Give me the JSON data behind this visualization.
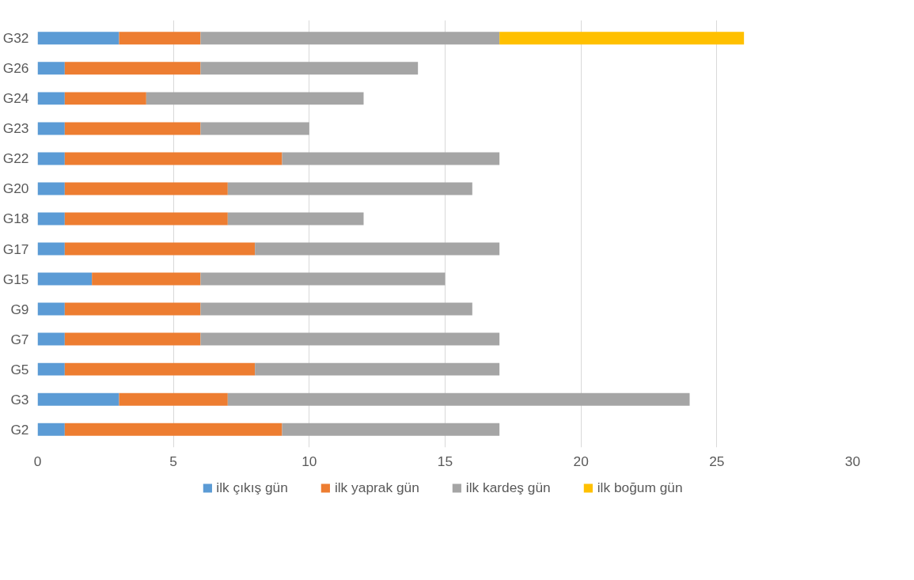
{
  "chart_data": {
    "type": "bar",
    "orientation": "horizontal",
    "stacked": true,
    "categories": [
      "G32",
      "G26",
      "G24",
      "G23",
      "G22",
      "G20",
      "G18",
      "G17",
      "G15",
      "G9",
      "G7",
      "G5",
      "G3",
      "G2"
    ],
    "series": [
      {
        "name": "ilk çıkış gün",
        "color": "#5b9bd5",
        "values": [
          3,
          1,
          1,
          1,
          1,
          1,
          1,
          1,
          2,
          1,
          1,
          1,
          3,
          1
        ]
      },
      {
        "name": "ilk yaprak gün",
        "color": "#ed7d31",
        "values": [
          3,
          5,
          3,
          5,
          8,
          6,
          6,
          7,
          4,
          5,
          5,
          7,
          4,
          8
        ]
      },
      {
        "name": "ilk kardeş gün",
        "color": "#a5a5a5",
        "values": [
          11,
          8,
          8,
          4,
          8,
          9,
          5,
          9,
          9,
          10,
          11,
          9,
          17,
          8
        ]
      },
      {
        "name": "ilk boğum gün",
        "color": "#ffc000",
        "values": [
          9,
          null,
          null,
          null,
          null,
          null,
          null,
          null,
          null,
          null,
          null,
          null,
          null,
          null
        ]
      }
    ],
    "xlim": [
      0,
      30
    ],
    "xticks": [
      0,
      5,
      10,
      15,
      20,
      25,
      30
    ],
    "grid": "x",
    "legend": "bottom"
  }
}
